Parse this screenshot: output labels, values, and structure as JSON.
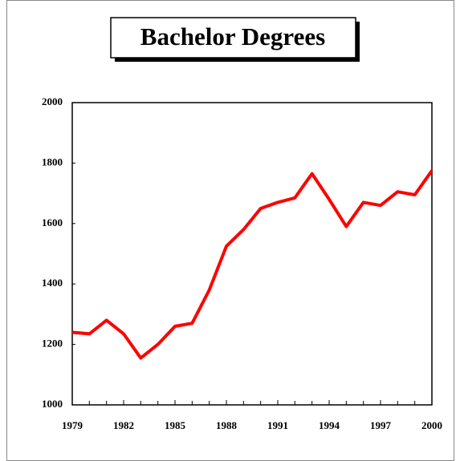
{
  "chart_data": {
    "type": "line",
    "title": "Bachelor Degrees",
    "x": [
      1979,
      1980,
      1981,
      1982,
      1983,
      1984,
      1985,
      1986,
      1987,
      1988,
      1989,
      1990,
      1991,
      1992,
      1993,
      1994,
      1995,
      1996,
      1997,
      1998,
      1999,
      2000
    ],
    "series": [
      {
        "name": "Bachelor Degrees",
        "color": "#ff0000",
        "values": [
          1240,
          1235,
          1280,
          1235,
          1155,
          1200,
          1260,
          1270,
          1380,
          1525,
          1580,
          1650,
          1670,
          1685,
          1765,
          1680,
          1590,
          1670,
          1660,
          1705,
          1695,
          1775
        ]
      }
    ],
    "xlim": [
      1979,
      2000
    ],
    "xticks": [
      1979,
      1982,
      1985,
      1988,
      1991,
      1994,
      1997,
      2000
    ],
    "ylim": [
      1000,
      2000
    ],
    "yticks": [
      1000,
      1200,
      1400,
      1600,
      1800,
      2000
    ]
  }
}
